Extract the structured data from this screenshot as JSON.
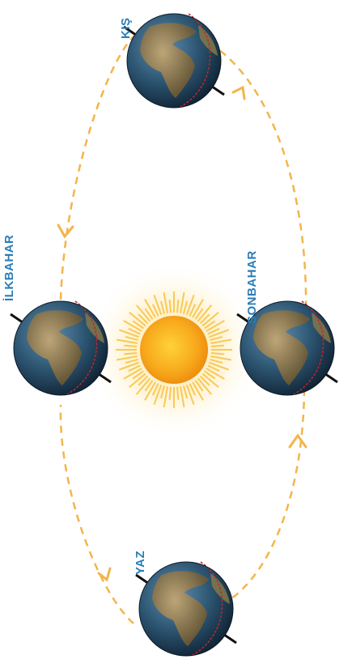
{
  "seasons": [
    {
      "label": "KIŞ"
    },
    {
      "label": "İLKBAHAR"
    },
    {
      "label": "SONBAHAR"
    },
    {
      "label": "YAZ"
    }
  ]
}
